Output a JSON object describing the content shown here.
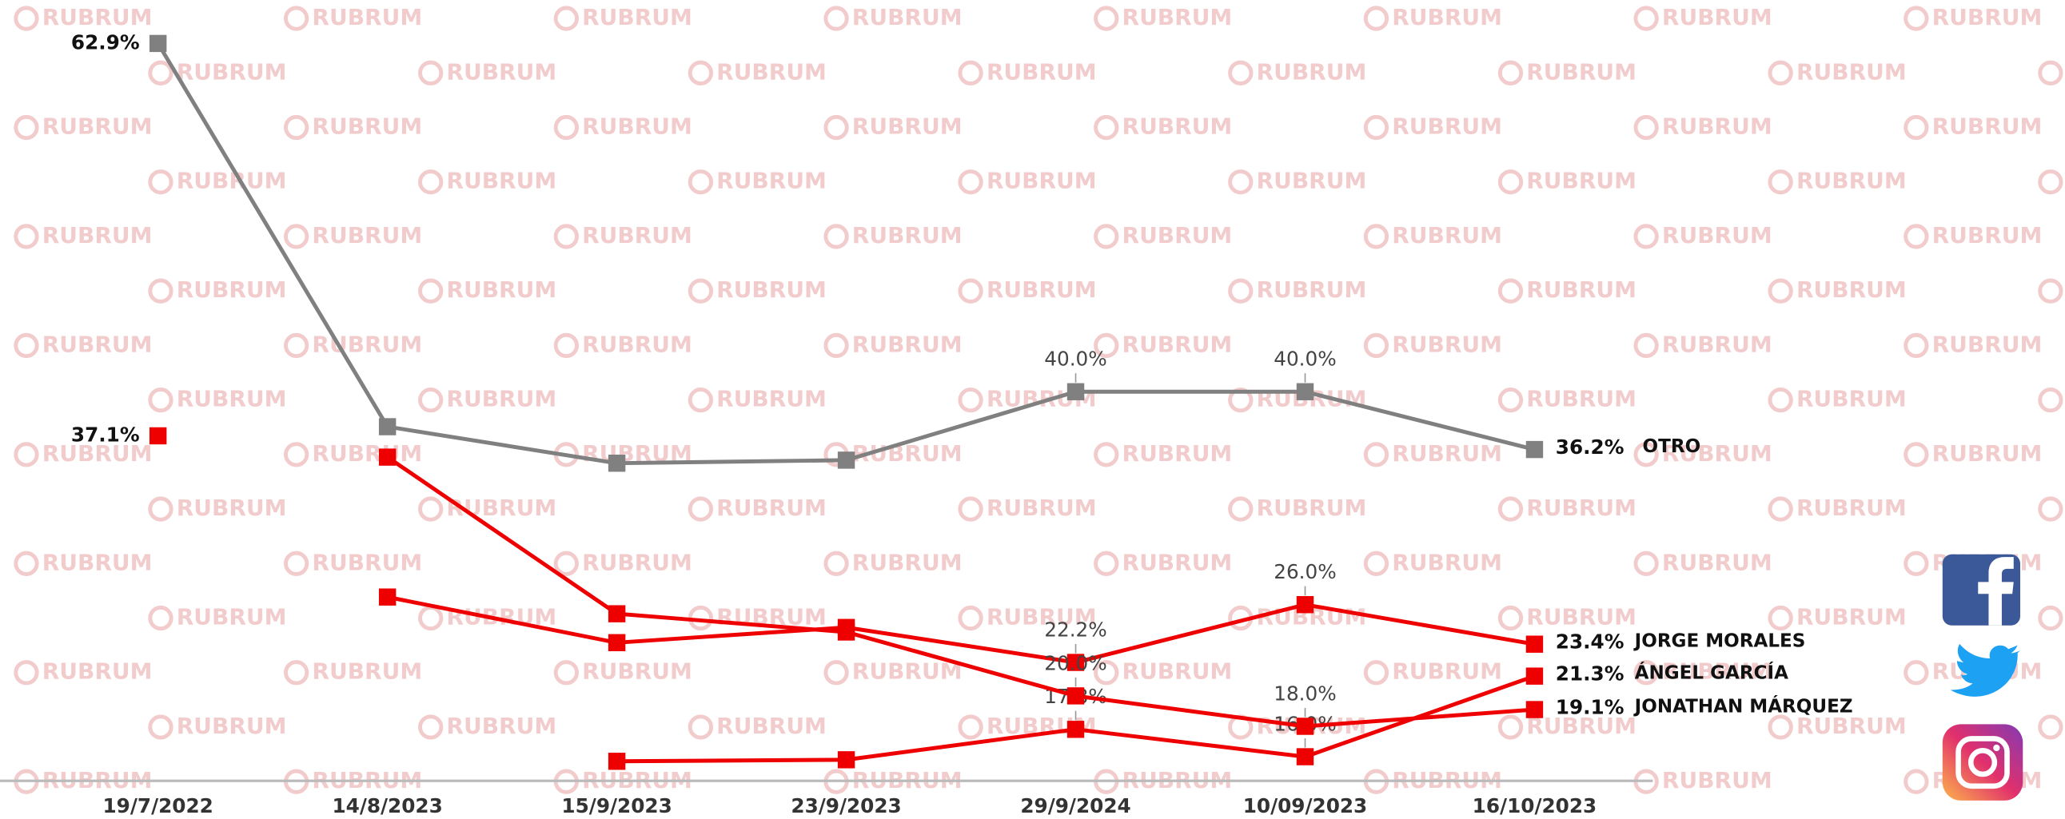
{
  "watermark": "RUBRUM",
  "chart_data": {
    "type": "line",
    "categories": [
      "19/7/2022",
      "14/8/2023",
      "15/9/2023",
      "23/9/2023",
      "29/9/2024",
      "10/09/2023",
      "16/10/2023"
    ],
    "series": [
      {
        "name": "OTRO",
        "color": "#808080",
        "values": [
          62.9,
          37.7,
          35.3,
          35.5,
          40.0,
          40.0,
          36.2
        ],
        "value_labels": [
          "62.9%",
          null,
          null,
          null,
          "40.0%",
          "40.0%",
          "36.2%"
        ]
      },
      {
        "name": "JORGE MORALES",
        "color": "#ee0000",
        "values": [
          null,
          26.5,
          23.5,
          24.5,
          22.2,
          26.0,
          23.4
        ],
        "value_labels": [
          null,
          null,
          null,
          null,
          "22.2%",
          "26.0%",
          "23.4%"
        ]
      },
      {
        "name": "ÁNGEL GARCÍA",
        "color": "#ee0000",
        "values": [
          37.1,
          null,
          15.7,
          15.8,
          17.8,
          16.0,
          21.3
        ],
        "value_labels": [
          "37.1%",
          null,
          null,
          null,
          "17.8%",
          "16.0%",
          "21.3%"
        ]
      },
      {
        "name": "JONATHAN MÁRQUEZ",
        "color": "#ee0000",
        "values": [
          null,
          35.7,
          25.4,
          24.2,
          20.0,
          18.0,
          19.1
        ],
        "value_labels": [
          null,
          null,
          null,
          null,
          "20.0%",
          "18.0%",
          "19.1%"
        ]
      }
    ]
  }
}
